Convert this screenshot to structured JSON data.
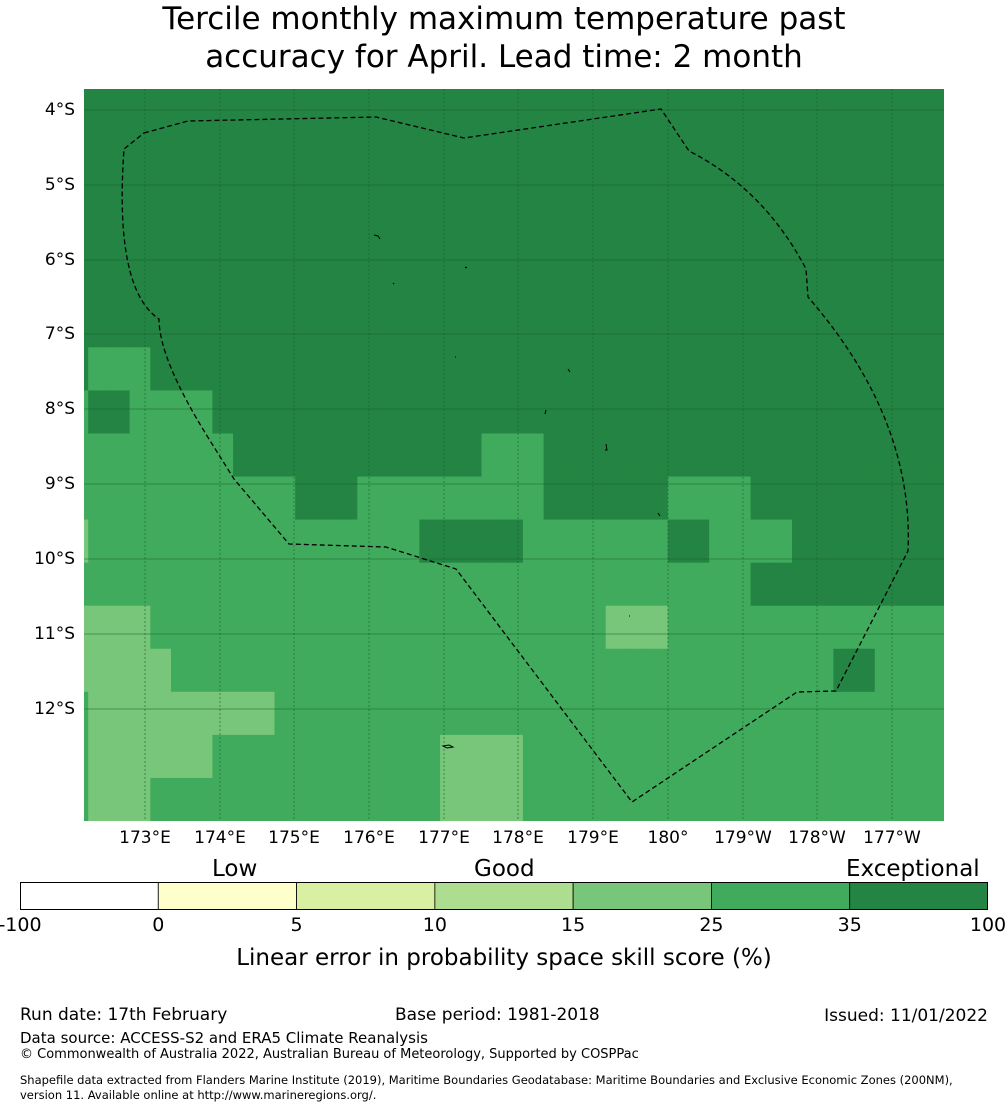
{
  "title": {
    "line1": "Tercile monthly maximum temperature past",
    "line2": "accuracy for April. Lead time: 2 month"
  },
  "map": {
    "lat_labels": [
      "4°S",
      "5°S",
      "6°S",
      "7°S",
      "8°S",
      "9°S",
      "10°S",
      "11°S",
      "12°S"
    ],
    "lon_labels": [
      "173°E",
      "174°E",
      "175°E",
      "176°E",
      "177°E",
      "178°E",
      "179°E",
      "180°",
      "179°W",
      "178°W",
      "177°W"
    ],
    "category_colors": [
      "#ffffcc",
      "#d9f0a3",
      "#addd8e",
      "#78c679",
      "#41ab5d",
      "#238443"
    ],
    "grid_rows": [
      "55555555555555555555555555555555555555555555",
      "55555555555555555555555555555555555555555555",
      "55555555555555555555555555555555555555555555",
      "55555555555555555555555555555555555555555555",
      "55555555555555555555555555555555555555555555",
      "55555555555555555555555555555555555555555555",
      "54445555555555555555555555555555555555555555",
      "45544445555555555555555555555555555555555555",
      "44444444555555555555444555555555555555555555",
      "44444444444555444444444555555444455555555555",
      "34444444444444444555554444444554444555555555",
      "44444444444444444444444444444444455555555555",
      "33334444444444444444444444333444444444444445",
      "33333444444444444444444444444444444445544444",
      "43333333334444444444444444444444444444444444",
      "43333334444444444433334444444444444444444445",
      "43334444444444444433334444444444444444444444"
    ]
  },
  "legend": {
    "categories": [
      "Low",
      "Good",
      "Exceptional"
    ],
    "colors": [
      "#ffffff",
      "#ffffcc",
      "#d9f0a3",
      "#addd8e",
      "#78c679",
      "#41ab5d",
      "#238443"
    ],
    "ticks": [
      "-100",
      "0",
      "5",
      "10",
      "15",
      "25",
      "35",
      "100"
    ],
    "label": "Linear error in probability space skill score (%)"
  },
  "footer": {
    "run_date": "Run date: 17th February",
    "base_period": "Base period: 1981-2018",
    "issued": "Issued: 11/01/2022",
    "data_source": "Data source: ACCESS-S2 and ERA5 Climate Reanalysis",
    "copyright": "© Commonwealth of Australia 2022, Australian Bureau of Meteorology, Supported by COSPPac",
    "shapefile_line1": "Shapefile data extracted from Flanders Marine Institute (2019), Maritime Boundaries Geodatabase: Maritime Boundaries and Exclusive Economic Zones (200NM),",
    "shapefile_line2": "version 11. Available online at http://www.marineregions.org/."
  }
}
